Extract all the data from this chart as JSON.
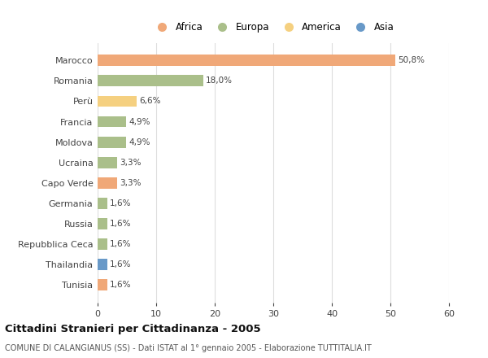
{
  "categories": [
    "Marocco",
    "Romania",
    "Perù",
    "Francia",
    "Moldova",
    "Ucraina",
    "Capo Verde",
    "Germania",
    "Russia",
    "Repubblica Ceca",
    "Thailandia",
    "Tunisia"
  ],
  "values": [
    50.8,
    18.0,
    6.6,
    4.9,
    4.9,
    3.3,
    3.3,
    1.6,
    1.6,
    1.6,
    1.6,
    1.6
  ],
  "labels": [
    "50,8%",
    "18,0%",
    "6,6%",
    "4,9%",
    "4,9%",
    "3,3%",
    "3,3%",
    "1,6%",
    "1,6%",
    "1,6%",
    "1,6%",
    "1,6%"
  ],
  "colors": [
    "#F0A878",
    "#AABF8A",
    "#F5D080",
    "#AABF8A",
    "#AABF8A",
    "#AABF8A",
    "#F0A878",
    "#AABF8A",
    "#AABF8A",
    "#AABF8A",
    "#6899C8",
    "#F0A878"
  ],
  "legend": [
    {
      "label": "Africa",
      "color": "#F0A878"
    },
    {
      "label": "Europa",
      "color": "#AABF8A"
    },
    {
      "label": "America",
      "color": "#F5D080"
    },
    {
      "label": "Asia",
      "color": "#6899C8"
    }
  ],
  "xlim": [
    0,
    60
  ],
  "xticks": [
    0,
    10,
    20,
    30,
    40,
    50,
    60
  ],
  "title": "Cittadini Stranieri per Cittadinanza - 2005",
  "subtitle": "COMUNE DI CALANGIANUS (SS) - Dati ISTAT al 1° gennaio 2005 - Elaborazione TUTTITALIA.IT",
  "background_color": "#ffffff",
  "grid_color": "#dddddd",
  "bar_height": 0.55
}
